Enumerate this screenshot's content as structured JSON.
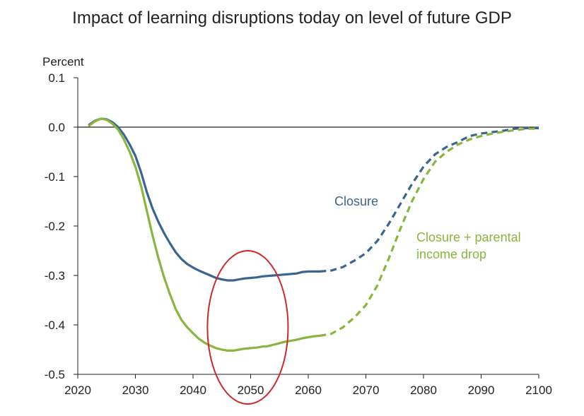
{
  "chart_data": {
    "type": "line",
    "title": "Impact of learning disruptions today on level of future GDP",
    "ylabel": "Percent",
    "xlabel": "",
    "xlim": [
      2020,
      2100
    ],
    "ylim": [
      -0.5,
      0.1
    ],
    "xticks": [
      "2020",
      "2030",
      "2040",
      "2050",
      "2060",
      "2070",
      "2080",
      "2090",
      "2100"
    ],
    "yticks": [
      "0.1",
      "0.0",
      "-0.1",
      "-0.2",
      "-0.3",
      "-0.4",
      "-0.5"
    ],
    "grid": false,
    "series": [
      {
        "name": "Closure",
        "color": "#3a6591",
        "label_lines": [
          "Closure"
        ],
        "dashed_from_x": 2062,
        "points": [
          [
            2022,
            0.005
          ],
          [
            2023,
            0.013
          ],
          [
            2024,
            0.017
          ],
          [
            2025,
            0.016
          ],
          [
            2026,
            0.01
          ],
          [
            2027,
            0.0
          ],
          [
            2028,
            -0.015
          ],
          [
            2029,
            -0.035
          ],
          [
            2030,
            -0.058
          ],
          [
            2031,
            -0.092
          ],
          [
            2032,
            -0.132
          ],
          [
            2033,
            -0.165
          ],
          [
            2034,
            -0.192
          ],
          [
            2035,
            -0.215
          ],
          [
            2036,
            -0.235
          ],
          [
            2037,
            -0.253
          ],
          [
            2038,
            -0.267
          ],
          [
            2039,
            -0.277
          ],
          [
            2040,
            -0.284
          ],
          [
            2041,
            -0.29
          ],
          [
            2042,
            -0.295
          ],
          [
            2043,
            -0.3
          ],
          [
            2044,
            -0.305
          ],
          [
            2045,
            -0.308
          ],
          [
            2046,
            -0.31
          ],
          [
            2047,
            -0.31
          ],
          [
            2048,
            -0.308
          ],
          [
            2049,
            -0.306
          ],
          [
            2050,
            -0.305
          ],
          [
            2051,
            -0.304
          ],
          [
            2052,
            -0.302
          ],
          [
            2053,
            -0.301
          ],
          [
            2054,
            -0.3
          ],
          [
            2055,
            -0.299
          ],
          [
            2056,
            -0.298
          ],
          [
            2057,
            -0.297
          ],
          [
            2058,
            -0.296
          ],
          [
            2059,
            -0.293
          ],
          [
            2060,
            -0.292
          ],
          [
            2061,
            -0.292
          ],
          [
            2062,
            -0.292
          ],
          [
            2064,
            -0.29
          ],
          [
            2066,
            -0.283
          ],
          [
            2068,
            -0.27
          ],
          [
            2070,
            -0.255
          ],
          [
            2072,
            -0.23
          ],
          [
            2074,
            -0.195
          ],
          [
            2076,
            -0.155
          ],
          [
            2078,
            -0.115
          ],
          [
            2080,
            -0.08
          ],
          [
            2082,
            -0.055
          ],
          [
            2084,
            -0.04
          ],
          [
            2086,
            -0.03
          ],
          [
            2088,
            -0.018
          ],
          [
            2090,
            -0.013
          ],
          [
            2092,
            -0.01
          ],
          [
            2094,
            -0.007
          ],
          [
            2096,
            -0.003
          ],
          [
            2098,
            -0.002
          ],
          [
            2100,
            -0.002
          ]
        ]
      },
      {
        "name": "Closure + parental income drop",
        "color": "#8ab540",
        "label_lines": [
          "Closure + parental",
          "income drop"
        ],
        "dashed_from_x": 2062,
        "points": [
          [
            2022,
            0.003
          ],
          [
            2023,
            0.012
          ],
          [
            2024,
            0.017
          ],
          [
            2025,
            0.015
          ],
          [
            2026,
            0.007
          ],
          [
            2027,
            -0.005
          ],
          [
            2028,
            -0.025
          ],
          [
            2029,
            -0.05
          ],
          [
            2030,
            -0.08
          ],
          [
            2031,
            -0.12
          ],
          [
            2032,
            -0.17
          ],
          [
            2033,
            -0.22
          ],
          [
            2034,
            -0.265
          ],
          [
            2035,
            -0.305
          ],
          [
            2036,
            -0.338
          ],
          [
            2037,
            -0.368
          ],
          [
            2038,
            -0.39
          ],
          [
            2039,
            -0.405
          ],
          [
            2040,
            -0.417
          ],
          [
            2041,
            -0.428
          ],
          [
            2042,
            -0.436
          ],
          [
            2043,
            -0.442
          ],
          [
            2044,
            -0.447
          ],
          [
            2045,
            -0.45
          ],
          [
            2046,
            -0.452
          ],
          [
            2047,
            -0.452
          ],
          [
            2048,
            -0.45
          ],
          [
            2049,
            -0.448
          ],
          [
            2050,
            -0.447
          ],
          [
            2051,
            -0.446
          ],
          [
            2052,
            -0.444
          ],
          [
            2053,
            -0.443
          ],
          [
            2054,
            -0.44
          ],
          [
            2055,
            -0.437
          ],
          [
            2056,
            -0.434
          ],
          [
            2057,
            -0.432
          ],
          [
            2058,
            -0.43
          ],
          [
            2059,
            -0.427
          ],
          [
            2060,
            -0.425
          ],
          [
            2061,
            -0.423
          ],
          [
            2062,
            -0.422
          ],
          [
            2064,
            -0.418
          ],
          [
            2066,
            -0.405
          ],
          [
            2068,
            -0.385
          ],
          [
            2070,
            -0.36
          ],
          [
            2072,
            -0.32
          ],
          [
            2074,
            -0.265
          ],
          [
            2076,
            -0.205
          ],
          [
            2078,
            -0.15
          ],
          [
            2080,
            -0.105
          ],
          [
            2082,
            -0.07
          ],
          [
            2084,
            -0.05
          ],
          [
            2086,
            -0.035
          ],
          [
            2088,
            -0.025
          ],
          [
            2090,
            -0.018
          ],
          [
            2092,
            -0.013
          ],
          [
            2094,
            -0.009
          ],
          [
            2096,
            -0.006
          ],
          [
            2098,
            -0.003
          ],
          [
            2100,
            -0.003
          ]
        ]
      }
    ],
    "annotations": [
      {
        "type": "ellipse",
        "color": "#cc2a2a",
        "center_x": 2049.5,
        "center_y": -0.405,
        "radius_x": 7,
        "radius_y": 0.155
      }
    ]
  }
}
